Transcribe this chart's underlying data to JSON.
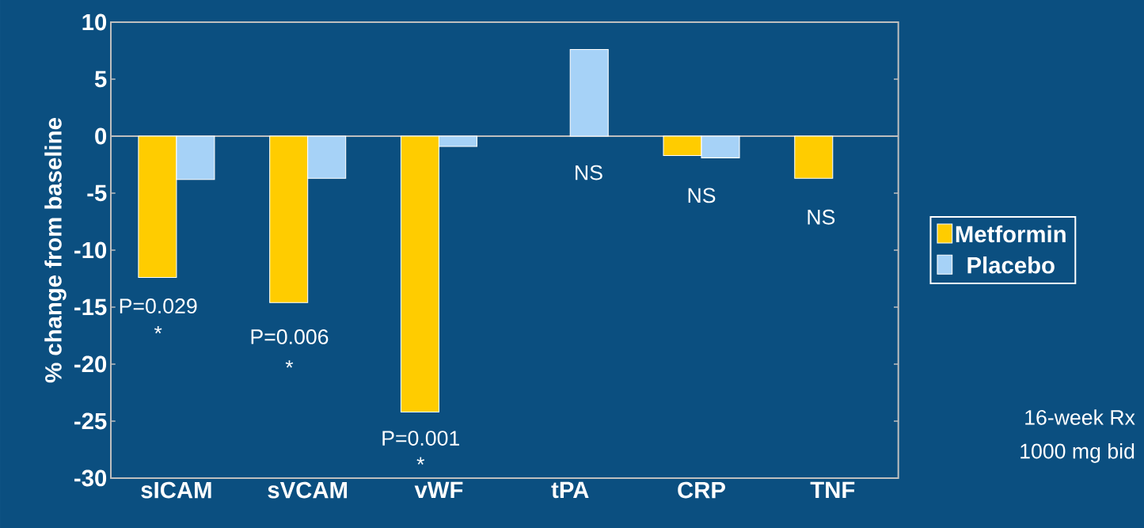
{
  "chart_data": {
    "type": "bar",
    "ylabel": "% change from baseline",
    "categories": [
      "sICAM",
      "sVCAM",
      "vWF",
      "tPA",
      "CRP",
      "TNF"
    ],
    "series": [
      {
        "name": "Metformin",
        "color": "#ffcc00",
        "values": [
          -12.4,
          -14.6,
          -24.2,
          null,
          -1.7,
          -3.7
        ]
      },
      {
        "name": "Placebo",
        "color": "#a6d2f7",
        "values": [
          -3.8,
          -3.7,
          -0.9,
          7.6,
          -1.9,
          null
        ]
      }
    ],
    "ylim": [
      -30,
      10
    ],
    "yticks": [
      -30,
      -25,
      -20,
      -15,
      -10,
      -5,
      0,
      5,
      10
    ],
    "legend": "right",
    "annotations": [
      "P=0.029",
      "*",
      "P=0.006",
      "*",
      "P=0.001",
      "*",
      "NS",
      "NS",
      "NS",
      "16-week Rx",
      "1000 mg bid"
    ]
  }
}
